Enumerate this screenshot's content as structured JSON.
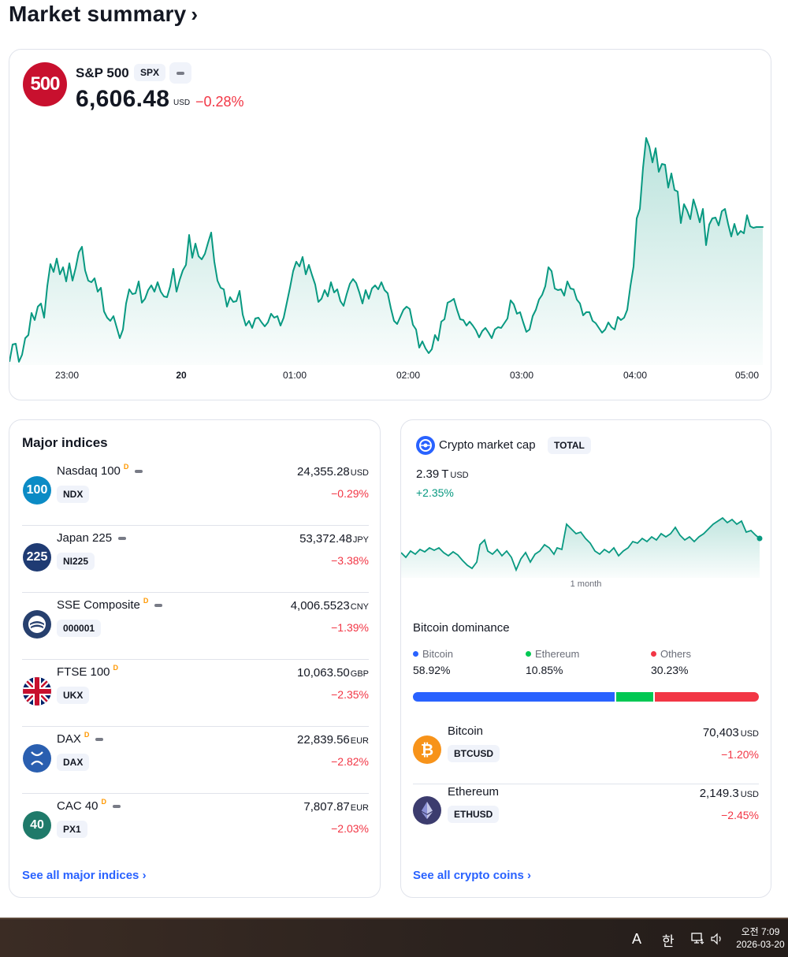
{
  "page": {
    "title": "Market summary",
    "title_chevron": "›"
  },
  "spx": {
    "logo_text": "500",
    "name": "S&P 500",
    "ticker": "SPX",
    "price": "6,606.48",
    "currency": "USD",
    "change": "−0.28%",
    "line_color": "#089981",
    "x_ticks": [
      "23:00",
      "20",
      "01:00",
      "02:00",
      "03:00",
      "04:00",
      "05:00"
    ]
  },
  "major_indices": {
    "title": "Major indices",
    "items": [
      {
        "logo_text": "100",
        "logo_color": "#0b8bc5",
        "name": "Nasdaq 100",
        "sup": "D",
        "has_dash": true,
        "ticker": "NDX",
        "price": "24,355.28",
        "currency": "USD",
        "change": "−0.29%"
      },
      {
        "logo_text": "225",
        "logo_color": "#1f3b73",
        "name": "Japan 225",
        "sup": "",
        "has_dash": true,
        "ticker": "NI225",
        "price": "53,372.48",
        "currency": "JPY",
        "change": "−3.38%"
      },
      {
        "logo_text": "",
        "logo_color": "#27406e",
        "logo_icon": "sse-icon",
        "name": "SSE Composite",
        "sup": "D",
        "has_dash": true,
        "ticker": "000001",
        "price": "4,006.5523",
        "currency": "CNY",
        "change": "−1.39%"
      },
      {
        "logo_text": "",
        "logo_color": "#012169",
        "logo_icon": "uk-flag-icon",
        "name": "FTSE 100",
        "sup": "D",
        "has_dash": false,
        "ticker": "UKX",
        "price": "10,063.50",
        "currency": "GBP",
        "change": "−2.35%"
      },
      {
        "logo_text": "",
        "logo_color": "#2a5fb0",
        "logo_icon": "dax-icon",
        "name": "DAX",
        "sup": "D",
        "has_dash": true,
        "ticker": "DAX",
        "price": "22,839.56",
        "currency": "EUR",
        "change": "−2.82%"
      },
      {
        "logo_text": "40",
        "logo_color": "#1f7a6a",
        "name": "CAC 40",
        "sup": "D",
        "has_dash": true,
        "ticker": "PX1",
        "price": "7,807.87",
        "currency": "EUR",
        "change": "−2.03%"
      }
    ],
    "see_all": "See all major indices ›"
  },
  "crypto": {
    "title": "Crypto market cap",
    "ticker": "TOTAL",
    "value": "2.39",
    "value_unit": "T",
    "currency": "USD",
    "change": "+2.35%",
    "period": "1 month",
    "dominance": {
      "title": "Bitcoin dominance",
      "items": [
        {
          "label": "Bitcoin",
          "value": "58.92%",
          "pct": 58.92,
          "color": "#2962ff"
        },
        {
          "label": "Ethereum",
          "value": "10.85%",
          "pct": 10.85,
          "color": "#00c853"
        },
        {
          "label": "Others",
          "value": "30.23%",
          "pct": 30.23,
          "color": "#f23645"
        }
      ]
    },
    "coins": [
      {
        "name": "Bitcoin",
        "ticker": "BTCUSD",
        "price": "70,403",
        "currency": "USD",
        "change": "−1.20%",
        "logo_color": "#f7931a"
      },
      {
        "name": "Ethereum",
        "ticker": "ETHUSD",
        "price": "2,149.3",
        "currency": "USD",
        "change": "−2.45%",
        "logo_color": "#3c3c6e"
      }
    ],
    "see_all": "See all crypto coins ›"
  },
  "taskbar": {
    "ime": "A",
    "hangul": "한",
    "clock_time": "오전 7:09",
    "clock_date": "2026-03-20"
  }
}
